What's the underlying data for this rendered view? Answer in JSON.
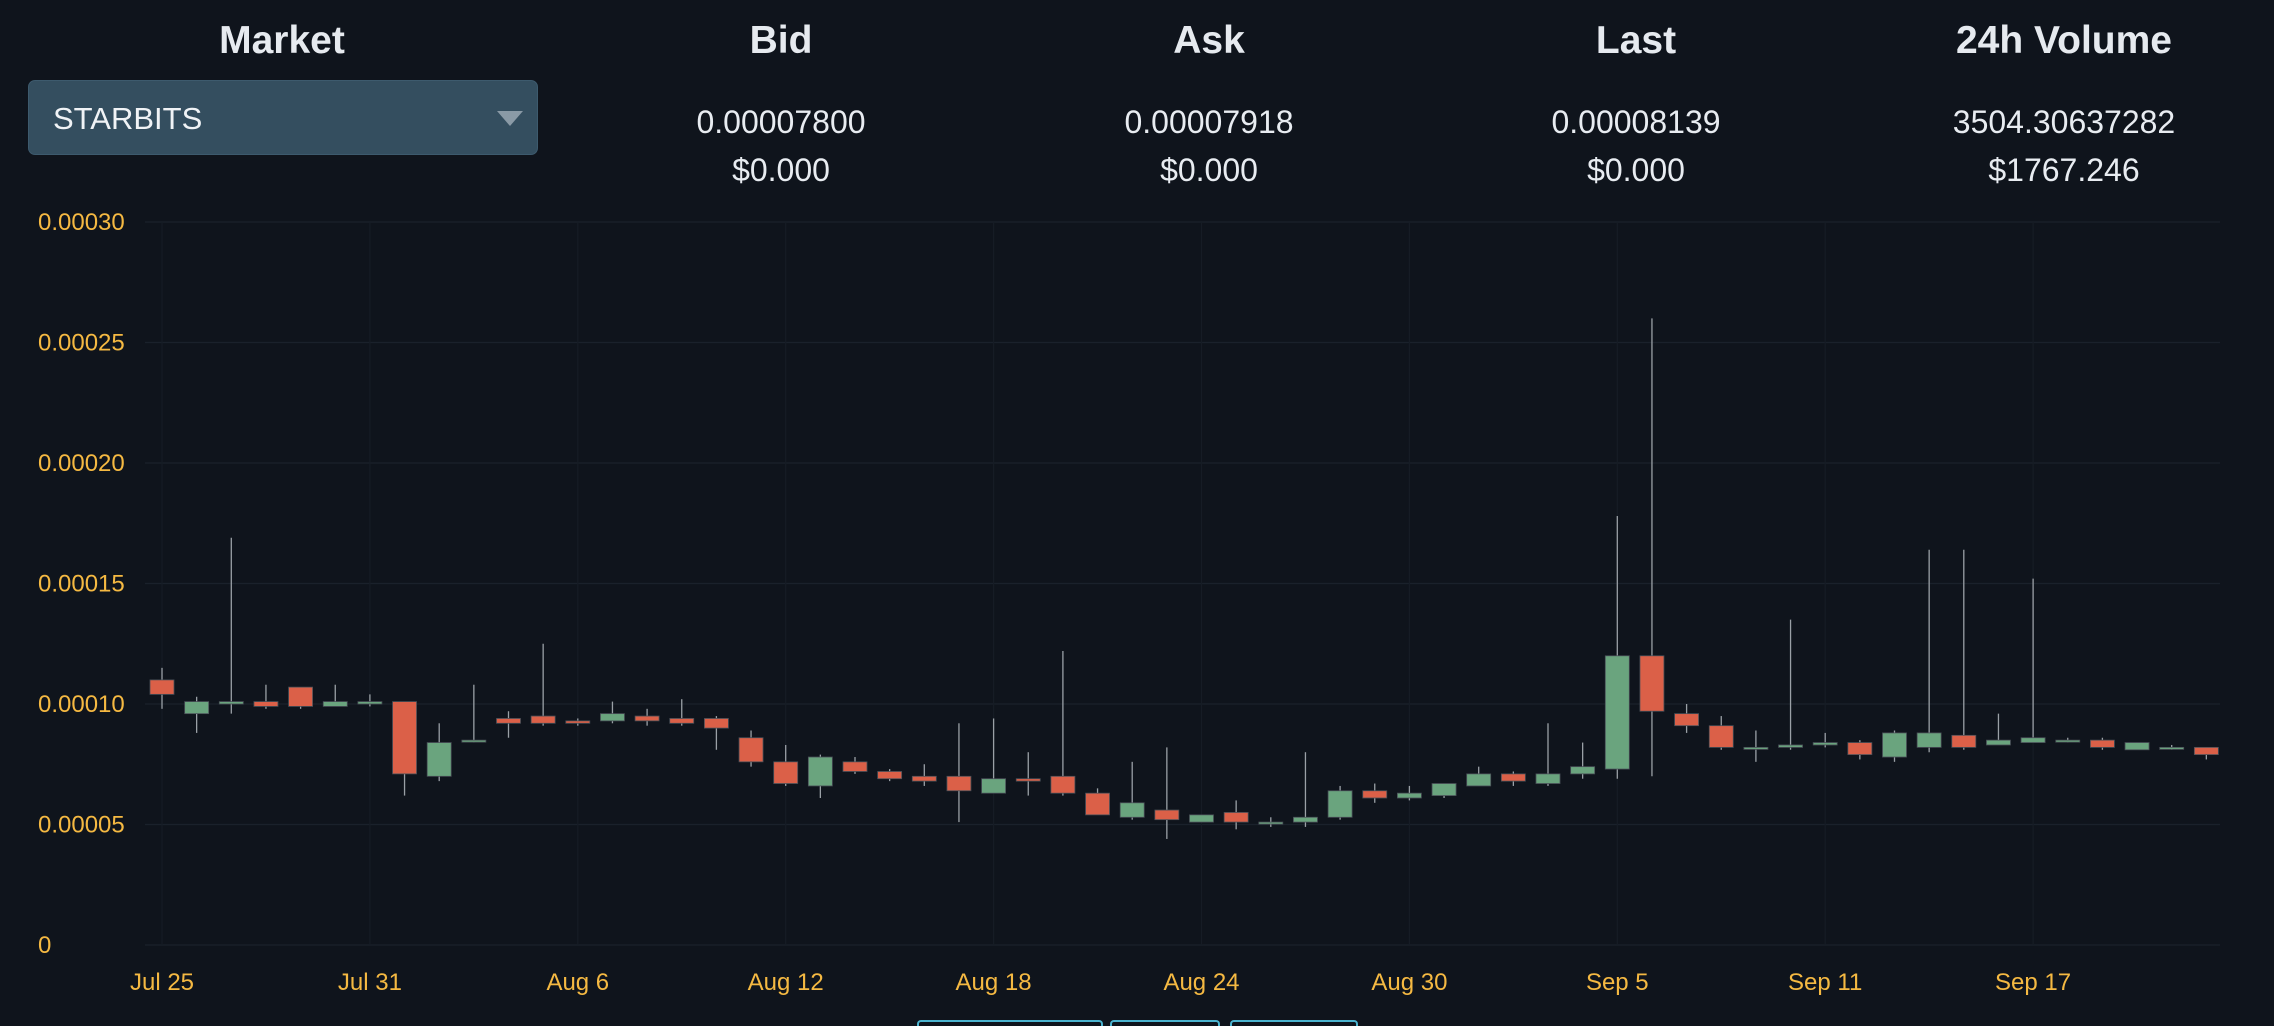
{
  "header": {
    "market": {
      "title": "Market",
      "selected": "STARBITS"
    },
    "bid": {
      "title": "Bid",
      "value": "0.00007800",
      "usd": "$0.000"
    },
    "ask": {
      "title": "Ask",
      "value": "0.00007918",
      "usd": "$0.000"
    },
    "last": {
      "title": "Last",
      "value": "0.00008139",
      "usd": "$0.000"
    },
    "volume": {
      "title": "24h Volume",
      "value": "3504.30637282",
      "usd": "$1767.246"
    }
  },
  "colors": {
    "up": "#6aa47e",
    "down": "#db6048",
    "wick": "#9aa0a6",
    "axis_text": "#f5b942",
    "background": "#0f141c",
    "select_bg": "#344e5f",
    "tab_border": "#4ab3cf"
  },
  "icons": {
    "dropdown": "caret-down-icon"
  },
  "chart_data": {
    "type": "candlestick",
    "title": "",
    "xlabel": "",
    "ylabel": "",
    "ylim": [
      0,
      0.0003
    ],
    "y_ticks": [
      "0",
      "0.00005",
      "0.00010",
      "0.00015",
      "0.00020",
      "0.00025",
      "0.00030"
    ],
    "y_tick_values": [
      0,
      5e-05,
      0.0001,
      0.00015,
      0.0002,
      0.00025,
      0.0003
    ],
    "x_ticks": [
      "Jul 25",
      "Jul 31",
      "Aug 6",
      "Aug 12",
      "Aug 18",
      "Aug 24",
      "Aug 30",
      "Sep 5",
      "Sep 11",
      "Sep 17"
    ],
    "x_tick_day_index": [
      0,
      6,
      12,
      18,
      24,
      30,
      36,
      42,
      48,
      54
    ],
    "grid": true,
    "candles": [
      {
        "date": "Jul 25",
        "open": 0.00011,
        "high": 0.000115,
        "low": 9.8e-05,
        "close": 0.000104
      },
      {
        "date": "Jul 26",
        "open": 9.6e-05,
        "high": 0.000103,
        "low": 8.8e-05,
        "close": 0.000101
      },
      {
        "date": "Jul 27",
        "open": 0.0001,
        "high": 0.000169,
        "low": 9.6e-05,
        "close": 0.000101
      },
      {
        "date": "Jul 28",
        "open": 0.000101,
        "high": 0.000108,
        "low": 9.8e-05,
        "close": 9.9e-05
      },
      {
        "date": "Jul 29",
        "open": 0.000107,
        "high": 0.000107,
        "low": 9.8e-05,
        "close": 9.9e-05
      },
      {
        "date": "Jul 30",
        "open": 9.9e-05,
        "high": 0.000108,
        "low": 9.9e-05,
        "close": 0.000101
      },
      {
        "date": "Jul 31",
        "open": 0.0001,
        "high": 0.000104,
        "low": 9.9e-05,
        "close": 0.000101
      },
      {
        "date": "Aug 1",
        "open": 0.000101,
        "high": 0.000101,
        "low": 6.2e-05,
        "close": 7.1e-05
      },
      {
        "date": "Aug 2",
        "open": 7e-05,
        "high": 9.2e-05,
        "low": 6.8e-05,
        "close": 8.4e-05
      },
      {
        "date": "Aug 3",
        "open": 8.5e-05,
        "high": 0.000108,
        "low": 8.4e-05,
        "close": 8.5e-05
      },
      {
        "date": "Aug 4",
        "open": 9.4e-05,
        "high": 9.7e-05,
        "low": 8.6e-05,
        "close": 9.2e-05
      },
      {
        "date": "Aug 5",
        "open": 9.5e-05,
        "high": 0.000125,
        "low": 9.1e-05,
        "close": 9.2e-05
      },
      {
        "date": "Aug 6",
        "open": 9.3e-05,
        "high": 9.4e-05,
        "low": 9.1e-05,
        "close": 9.2e-05
      },
      {
        "date": "Aug 7",
        "open": 9.3e-05,
        "high": 0.000101,
        "low": 9.2e-05,
        "close": 9.6e-05
      },
      {
        "date": "Aug 8",
        "open": 9.5e-05,
        "high": 9.8e-05,
        "low": 9.1e-05,
        "close": 9.3e-05
      },
      {
        "date": "Aug 9",
        "open": 9.4e-05,
        "high": 0.000102,
        "low": 9.1e-05,
        "close": 9.2e-05
      },
      {
        "date": "Aug 10",
        "open": 9.4e-05,
        "high": 9.5e-05,
        "low": 8.1e-05,
        "close": 9e-05
      },
      {
        "date": "Aug 11",
        "open": 8.6e-05,
        "high": 8.9e-05,
        "low": 7.4e-05,
        "close": 7.6e-05
      },
      {
        "date": "Aug 12",
        "open": 7.6e-05,
        "high": 8.3e-05,
        "low": 6.6e-05,
        "close": 6.7e-05
      },
      {
        "date": "Aug 13",
        "open": 6.6e-05,
        "high": 7.9e-05,
        "low": 6.1e-05,
        "close": 7.8e-05
      },
      {
        "date": "Aug 14",
        "open": 7.6e-05,
        "high": 7.8e-05,
        "low": 7.1e-05,
        "close": 7.2e-05
      },
      {
        "date": "Aug 15",
        "open": 7.2e-05,
        "high": 7.3e-05,
        "low": 6.8e-05,
        "close": 6.9e-05
      },
      {
        "date": "Aug 16",
        "open": 7e-05,
        "high": 7.5e-05,
        "low": 6.6e-05,
        "close": 6.8e-05
      },
      {
        "date": "Aug 17",
        "open": 7e-05,
        "high": 9.2e-05,
        "low": 5.1e-05,
        "close": 6.4e-05
      },
      {
        "date": "Aug 18",
        "open": 6.3e-05,
        "high": 9.4e-05,
        "low": 6.3e-05,
        "close": 6.9e-05
      },
      {
        "date": "Aug 19",
        "open": 6.9e-05,
        "high": 8e-05,
        "low": 6.2e-05,
        "close": 6.8e-05
      },
      {
        "date": "Aug 20",
        "open": 7e-05,
        "high": 0.000122,
        "low": 6.2e-05,
        "close": 6.3e-05
      },
      {
        "date": "Aug 21",
        "open": 6.3e-05,
        "high": 6.5e-05,
        "low": 5.4e-05,
        "close": 5.4e-05
      },
      {
        "date": "Aug 22",
        "open": 5.3e-05,
        "high": 7.6e-05,
        "low": 5.2e-05,
        "close": 5.9e-05
      },
      {
        "date": "Aug 23",
        "open": 5.6e-05,
        "high": 8.2e-05,
        "low": 4.4e-05,
        "close": 5.2e-05
      },
      {
        "date": "Aug 24",
        "open": 5.1e-05,
        "high": 5.4e-05,
        "low": 5.1e-05,
        "close": 5.4e-05
      },
      {
        "date": "Aug 25",
        "open": 5.5e-05,
        "high": 6e-05,
        "low": 4.8e-05,
        "close": 5.1e-05
      },
      {
        "date": "Aug 26",
        "open": 5.1e-05,
        "high": 5.3e-05,
        "low": 4.9e-05,
        "close": 5.1e-05
      },
      {
        "date": "Aug 27",
        "open": 5.1e-05,
        "high": 8e-05,
        "low": 4.9e-05,
        "close": 5.3e-05
      },
      {
        "date": "Aug 28",
        "open": 5.3e-05,
        "high": 6.6e-05,
        "low": 5.2e-05,
        "close": 6.4e-05
      },
      {
        "date": "Aug 29",
        "open": 6.4e-05,
        "high": 6.7e-05,
        "low": 5.9e-05,
        "close": 6.1e-05
      },
      {
        "date": "Aug 30",
        "open": 6.1e-05,
        "high": 6.6e-05,
        "low": 6e-05,
        "close": 6.3e-05
      },
      {
        "date": "Aug 31",
        "open": 6.2e-05,
        "high": 6.7e-05,
        "low": 6.1e-05,
        "close": 6.7e-05
      },
      {
        "date": "Sep 1",
        "open": 6.6e-05,
        "high": 7.4e-05,
        "low": 6.6e-05,
        "close": 7.1e-05
      },
      {
        "date": "Sep 2",
        "open": 7.1e-05,
        "high": 7.2e-05,
        "low": 6.6e-05,
        "close": 6.8e-05
      },
      {
        "date": "Sep 3",
        "open": 6.7e-05,
        "high": 9.2e-05,
        "low": 6.6e-05,
        "close": 7.1e-05
      },
      {
        "date": "Sep 4",
        "open": 7.1e-05,
        "high": 8.4e-05,
        "low": 6.9e-05,
        "close": 7.4e-05
      },
      {
        "date": "Sep 5",
        "open": 7.3e-05,
        "high": 0.000178,
        "low": 6.9e-05,
        "close": 0.00012
      },
      {
        "date": "Sep 6",
        "open": 0.00012,
        "high": 0.00026,
        "low": 7e-05,
        "close": 9.7e-05
      },
      {
        "date": "Sep 7",
        "open": 9.6e-05,
        "high": 0.0001,
        "low": 8.8e-05,
        "close": 9.1e-05
      },
      {
        "date": "Sep 8",
        "open": 9.1e-05,
        "high": 9.5e-05,
        "low": 8.1e-05,
        "close": 8.2e-05
      },
      {
        "date": "Sep 9",
        "open": 8.2e-05,
        "high": 8.9e-05,
        "low": 7.6e-05,
        "close": 8.2e-05
      },
      {
        "date": "Sep 10",
        "open": 8.2e-05,
        "high": 0.000135,
        "low": 8.1e-05,
        "close": 8.3e-05
      },
      {
        "date": "Sep 11",
        "open": 8.3e-05,
        "high": 8.8e-05,
        "low": 8.2e-05,
        "close": 8.4e-05
      },
      {
        "date": "Sep 12",
        "open": 8.4e-05,
        "high": 8.5e-05,
        "low": 7.7e-05,
        "close": 7.9e-05
      },
      {
        "date": "Sep 13",
        "open": 7.8e-05,
        "high": 8.9e-05,
        "low": 7.6e-05,
        "close": 8.8e-05
      },
      {
        "date": "Sep 14",
        "open": 8.2e-05,
        "high": 0.000164,
        "low": 8e-05,
        "close": 8.8e-05
      },
      {
        "date": "Sep 15",
        "open": 8.7e-05,
        "high": 0.000164,
        "low": 8.1e-05,
        "close": 8.2e-05
      },
      {
        "date": "Sep 16",
        "open": 8.3e-05,
        "high": 9.6e-05,
        "low": 8.3e-05,
        "close": 8.5e-05
      },
      {
        "date": "Sep 17",
        "open": 8.4e-05,
        "high": 0.000152,
        "low": 8.4e-05,
        "close": 8.6e-05
      },
      {
        "date": "Sep 18",
        "open": 8.5e-05,
        "high": 8.6e-05,
        "low": 8.4e-05,
        "close": 8.5e-05
      },
      {
        "date": "Sep 19",
        "open": 8.5e-05,
        "high": 8.6e-05,
        "low": 8.1e-05,
        "close": 8.2e-05
      },
      {
        "date": "Sep 20",
        "open": 8.1e-05,
        "high": 8.4e-05,
        "low": 8.1e-05,
        "close": 8.4e-05
      },
      {
        "date": "Sep 21",
        "open": 8.2e-05,
        "high": 8.3e-05,
        "low": 8.1e-05,
        "close": 8.2e-05
      },
      {
        "date": "Sep 22",
        "open": 8.2e-05,
        "high": 8.2e-05,
        "low": 7.7e-05,
        "close": 7.9e-05
      }
    ]
  }
}
